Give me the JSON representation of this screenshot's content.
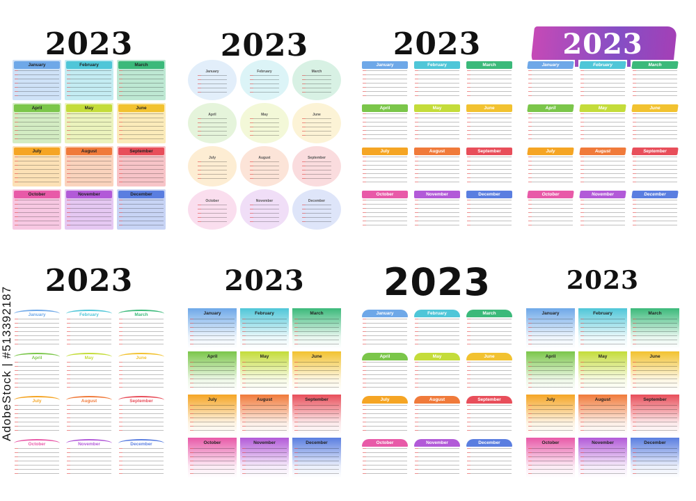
{
  "year": "2023",
  "watermark": "AdobeStock | #513392187",
  "months": [
    "January",
    "February",
    "March",
    "April",
    "May",
    "June",
    "July",
    "August",
    "September",
    "October",
    "November",
    "December"
  ],
  "colors": {
    "Jan": "#6ea8e8",
    "Feb": "#4fc6d8",
    "Mar": "#3bb97a",
    "Apr": "#7bc64a",
    "May": "#c4dc3a",
    "Jun": "#f2c230",
    "Jul": "#f5a524",
    "Aug": "#f07a3a",
    "Sep": "#e84e5a",
    "Oct": "#e85aa8",
    "Nov": "#b25ad8",
    "Dec": "#5a7ee0",
    "brush": "#a23ab8"
  },
  "panels": [
    {
      "id": "p1",
      "style": "block",
      "year": "2023"
    },
    {
      "id": "p2",
      "style": "circle",
      "year": "2023"
    },
    {
      "id": "p3",
      "style": "tab",
      "year": "2023"
    },
    {
      "id": "p4",
      "style": "brush",
      "year": "2023"
    },
    {
      "id": "p5",
      "style": "arc",
      "year": "2023"
    },
    {
      "id": "p6",
      "style": "grad",
      "year": "2023"
    },
    {
      "id": "p7",
      "style": "dome",
      "year": "2023"
    },
    {
      "id": "p8",
      "style": "grad",
      "year": "2023"
    }
  ]
}
